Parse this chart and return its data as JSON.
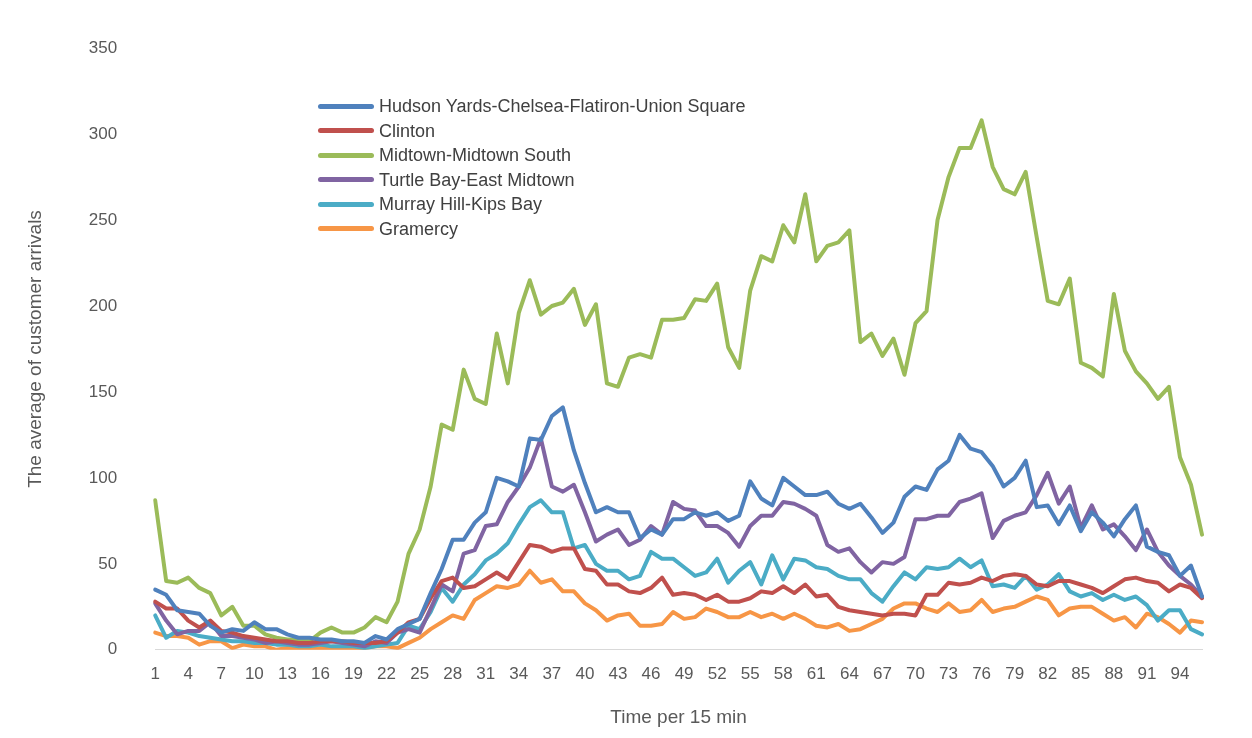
{
  "chart_data": {
    "type": "line",
    "xlabel": "Time per 15 min",
    "ylabel": "The average of customer arrivals",
    "categories": [
      "1",
      null,
      null,
      "4",
      null,
      null,
      "7",
      null,
      null,
      "10",
      null,
      null,
      "13",
      null,
      null,
      "16",
      null,
      null,
      "19",
      null,
      null,
      "22",
      null,
      null,
      "25",
      null,
      null,
      "28",
      null,
      null,
      "31",
      null,
      null,
      "34",
      null,
      null,
      "37",
      null,
      null,
      "40",
      null,
      null,
      "43",
      null,
      null,
      "46",
      null,
      null,
      "49",
      null,
      null,
      "52",
      null,
      null,
      "55",
      null,
      null,
      "58",
      null,
      null,
      "61",
      null,
      null,
      "64",
      null,
      null,
      "67",
      null,
      null,
      "70",
      null,
      null,
      "73",
      null,
      null,
      "76",
      null,
      null,
      "79",
      null,
      null,
      "82",
      null,
      null,
      "85",
      null,
      null,
      "88",
      null,
      null,
      "91",
      null,
      null,
      "94",
      null,
      null
    ],
    "ylim": [
      0,
      350
    ],
    "yticks": [
      0,
      50,
      100,
      150,
      200,
      250,
      300,
      350
    ],
    "grid": false,
    "legend": "top left",
    "marker": "none",
    "line_style": "solid",
    "tick_labels": "xy",
    "series": [
      {
        "name": "Hudson Yards-Chelsea-Flatiron-Union Square",
        "color": "#4f81bd",
        "values": [
          35,
          32,
          23,
          22,
          21,
          14,
          10,
          12,
          11,
          16,
          12,
          12,
          9,
          7,
          7,
          6,
          6,
          5,
          5,
          4,
          8,
          6,
          12,
          15,
          18,
          33,
          47,
          64,
          64,
          74,
          80,
          100,
          98,
          95,
          123,
          122,
          136,
          141,
          116,
          97,
          80,
          83,
          80,
          80,
          65,
          70,
          67,
          76,
          76,
          80,
          78,
          80,
          75,
          78,
          98,
          88,
          84,
          100,
          95,
          90,
          90,
          92,
          85,
          82,
          85,
          77,
          68,
          74,
          89,
          95,
          93,
          105,
          110,
          125,
          117,
          115,
          107,
          95,
          100,
          110,
          83,
          84,
          73,
          84,
          69,
          80,
          74,
          66,
          76,
          84,
          60,
          57,
          55,
          43,
          49,
          31
        ]
      },
      {
        "name": "Clinton",
        "color": "#c0504d",
        "values": [
          28,
          24,
          24,
          17,
          13,
          17,
          11,
          10,
          8,
          7,
          6,
          5,
          5,
          4,
          4,
          5,
          5,
          5,
          4,
          4,
          4,
          5,
          10,
          16,
          18,
          30,
          40,
          42,
          36,
          37,
          41,
          45,
          41,
          51,
          61,
          60,
          57,
          59,
          59,
          47,
          46,
          38,
          38,
          34,
          33,
          36,
          42,
          32,
          33,
          32,
          29,
          32,
          28,
          28,
          30,
          34,
          33,
          37,
          33,
          38,
          31,
          32,
          25,
          23,
          22,
          21,
          20,
          21,
          21,
          20,
          32,
          32,
          39,
          38,
          39,
          42,
          40,
          43,
          44,
          43,
          38,
          37,
          40,
          40,
          38,
          36,
          33,
          37,
          41,
          42,
          40,
          39,
          34,
          38,
          36,
          30
        ]
      },
      {
        "name": "Midtown-Midtown South",
        "color": "#9bbb59",
        "values": [
          87,
          40,
          39,
          42,
          36,
          33,
          20,
          25,
          14,
          14,
          9,
          7,
          6,
          6,
          5,
          10,
          13,
          10,
          10,
          13,
          19,
          16,
          28,
          56,
          70,
          95,
          131,
          128,
          163,
          146,
          143,
          184,
          155,
          196,
          215,
          195,
          200,
          202,
          210,
          189,
          201,
          155,
          153,
          170,
          172,
          170,
          192,
          192,
          193,
          204,
          203,
          213,
          176,
          164,
          209,
          229,
          226,
          247,
          237,
          265,
          226,
          235,
          237,
          244,
          179,
          184,
          171,
          181,
          160,
          190,
          197,
          250,
          275,
          292,
          292,
          308,
          281,
          268,
          265,
          278,
          240,
          203,
          201,
          216,
          167,
          164,
          159,
          207,
          174,
          162,
          155,
          146,
          153,
          112,
          96,
          67
        ]
      },
      {
        "name": "Turtle Bay-East Midtown",
        "color": "#8064a2",
        "values": [
          27,
          17,
          9,
          11,
          11,
          16,
          8,
          8,
          7,
          6,
          4,
          5,
          4,
          3,
          3,
          4,
          5,
          4,
          3,
          2,
          5,
          4,
          10,
          12,
          10,
          24,
          38,
          34,
          56,
          58,
          72,
          73,
          86,
          95,
          106,
          123,
          95,
          92,
          96,
          80,
          63,
          67,
          70,
          61,
          64,
          72,
          67,
          86,
          82,
          81,
          72,
          72,
          68,
          60,
          72,
          78,
          78,
          86,
          85,
          82,
          78,
          61,
          57,
          59,
          51,
          45,
          51,
          50,
          54,
          76,
          76,
          78,
          78,
          86,
          88,
          91,
          65,
          75,
          78,
          80,
          90,
          103,
          85,
          95,
          71,
          84,
          70,
          73,
          66,
          58,
          70,
          57,
          49,
          43,
          38,
          31
        ]
      },
      {
        "name": "Murray Hill-Kips Bay",
        "color": "#4bacc6",
        "values": [
          20,
          7,
          11,
          10,
          8,
          7,
          6,
          5,
          5,
          4,
          4,
          3,
          3,
          2,
          2,
          3,
          2,
          2,
          2,
          1,
          2,
          3,
          4,
          14,
          12,
          22,
          36,
          28,
          38,
          44,
          52,
          56,
          62,
          73,
          83,
          87,
          80,
          80,
          59,
          61,
          50,
          46,
          46,
          41,
          43,
          57,
          53,
          53,
          48,
          43,
          45,
          53,
          39,
          46,
          51,
          38,
          55,
          41,
          53,
          52,
          48,
          47,
          43,
          41,
          41,
          33,
          28,
          37,
          45,
          41,
          48,
          47,
          48,
          53,
          48,
          52,
          37,
          38,
          36,
          43,
          35,
          38,
          44,
          34,
          31,
          33,
          29,
          32,
          29,
          31,
          26,
          17,
          23,
          23,
          12,
          9
        ]
      },
      {
        "name": "Gramercy",
        "color": "#f79646",
        "values": [
          10,
          8,
          8,
          7,
          3,
          5,
          5,
          1,
          3,
          2,
          2,
          0,
          1,
          1,
          0,
          1,
          1,
          1,
          0,
          1,
          2,
          2,
          1,
          4,
          7,
          12,
          16,
          20,
          18,
          29,
          33,
          37,
          36,
          38,
          46,
          39,
          41,
          34,
          34,
          27,
          23,
          17,
          20,
          21,
          14,
          14,
          15,
          22,
          18,
          19,
          24,
          22,
          19,
          19,
          22,
          19,
          21,
          18,
          21,
          18,
          14,
          13,
          15,
          11,
          12,
          15,
          18,
          24,
          27,
          27,
          24,
          22,
          27,
          22,
          23,
          29,
          22,
          24,
          25,
          28,
          31,
          29,
          20,
          24,
          25,
          25,
          21,
          17,
          19,
          13,
          21,
          19,
          15,
          10,
          17,
          16
        ]
      }
    ]
  }
}
